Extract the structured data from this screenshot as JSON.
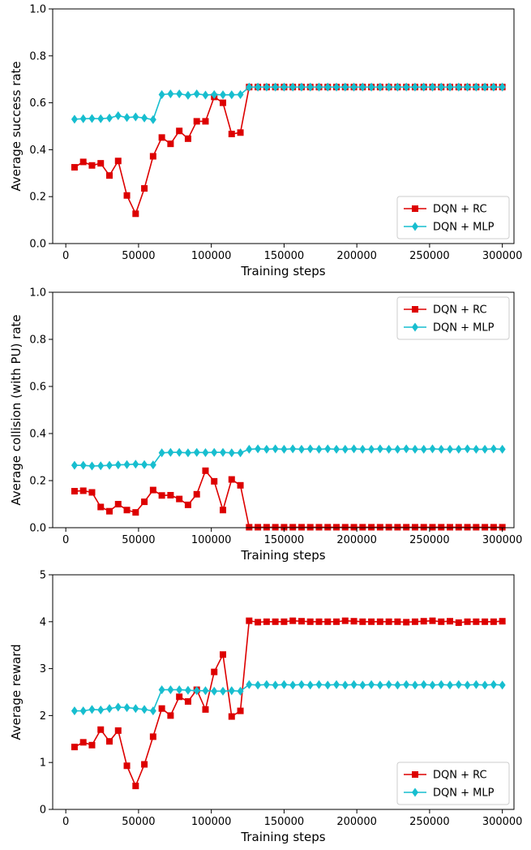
{
  "colors": {
    "rc": "#dd0000",
    "mlp": "#17becf",
    "axis": "#000000"
  },
  "chart_data": [
    {
      "type": "line",
      "xlabel": "Training steps",
      "ylabel": "Average success rate",
      "xlim": [
        -9000,
        308000
      ],
      "ylim": [
        0,
        1.0
      ],
      "xticks": [
        0,
        50000,
        100000,
        150000,
        200000,
        250000,
        300000
      ],
      "xtick_labels": [
        "0",
        "50000",
        "100000",
        "150000",
        "200000",
        "250000",
        "300000"
      ],
      "yticks": [
        0,
        0.2,
        0.4,
        0.6,
        0.8,
        1.0
      ],
      "ytick_labels": [
        "0.0",
        "0.2",
        "0.4",
        "0.6",
        "0.8",
        "1.0"
      ],
      "legend_position": "bottom-right",
      "series": [
        {
          "name": "DQN + RC",
          "marker": "square",
          "color": "#dd0000",
          "values": [
            0.325,
            0.348,
            0.333,
            0.342,
            0.29,
            0.352,
            0.205,
            0.127,
            0.235,
            0.372,
            0.452,
            0.425,
            0.48,
            0.447,
            0.521,
            0.521,
            0.625,
            0.6,
            0.467,
            0.473,
            0.667,
            0.667,
            0.667,
            0.667,
            0.667,
            0.667,
            0.667,
            0.667,
            0.667,
            0.667,
            0.667,
            0.667,
            0.667,
            0.667,
            0.667,
            0.667,
            0.667,
            0.667,
            0.667,
            0.667,
            0.667,
            0.667,
            0.667,
            0.667,
            0.667,
            0.667,
            0.667,
            0.667,
            0.667,
            0.667
          ]
        },
        {
          "name": "DQN + MLP",
          "marker": "diamond",
          "color": "#17becf",
          "values": [
            0.53,
            0.532,
            0.533,
            0.532,
            0.535,
            0.545,
            0.537,
            0.54,
            0.535,
            0.528,
            0.635,
            0.638,
            0.638,
            0.632,
            0.638,
            0.633,
            0.635,
            0.634,
            0.634,
            0.635,
            0.667,
            0.667,
            0.667,
            0.667,
            0.667,
            0.667,
            0.667,
            0.667,
            0.667,
            0.667,
            0.667,
            0.667,
            0.667,
            0.667,
            0.667,
            0.667,
            0.667,
            0.667,
            0.667,
            0.667,
            0.667,
            0.667,
            0.667,
            0.667,
            0.667,
            0.667,
            0.667,
            0.667,
            0.667,
            0.667
          ]
        }
      ]
    },
    {
      "type": "line",
      "xlabel": "Training steps",
      "ylabel": "Average collision (with PU) rate",
      "xlim": [
        -9000,
        308000
      ],
      "ylim": [
        0,
        1.0
      ],
      "xticks": [
        0,
        50000,
        100000,
        150000,
        200000,
        250000,
        300000
      ],
      "xtick_labels": [
        "0",
        "50000",
        "100000",
        "150000",
        "200000",
        "250000",
        "300000"
      ],
      "yticks": [
        0,
        0.2,
        0.4,
        0.6,
        0.8,
        1.0
      ],
      "ytick_labels": [
        "0.0",
        "0.2",
        "0.4",
        "0.6",
        "0.8",
        "1.0"
      ],
      "legend_position": "top-right",
      "series": [
        {
          "name": "DQN + RC",
          "marker": "square",
          "color": "#dd0000",
          "values": [
            0.155,
            0.157,
            0.15,
            0.088,
            0.07,
            0.1,
            0.075,
            0.065,
            0.11,
            0.16,
            0.137,
            0.138,
            0.122,
            0.097,
            0.142,
            0.242,
            0.197,
            0.075,
            0.205,
            0.18,
            0.002,
            0.002,
            0.002,
            0.002,
            0.002,
            0.002,
            0.002,
            0.002,
            0.002,
            0.002,
            0.002,
            0.002,
            0.002,
            0.002,
            0.002,
            0.002,
            0.002,
            0.002,
            0.002,
            0.002,
            0.002,
            0.002,
            0.002,
            0.002,
            0.002,
            0.002,
            0.002,
            0.002,
            0.002,
            0.002
          ]
        },
        {
          "name": "DQN + MLP",
          "marker": "diamond",
          "color": "#17becf",
          "values": [
            0.265,
            0.265,
            0.262,
            0.263,
            0.265,
            0.267,
            0.268,
            0.27,
            0.268,
            0.267,
            0.318,
            0.32,
            0.32,
            0.318,
            0.32,
            0.319,
            0.32,
            0.32,
            0.318,
            0.318,
            0.333,
            0.335,
            0.333,
            0.335,
            0.333,
            0.335,
            0.333,
            0.335,
            0.333,
            0.335,
            0.333,
            0.333,
            0.335,
            0.333,
            0.333,
            0.335,
            0.333,
            0.333,
            0.335,
            0.333,
            0.333,
            0.335,
            0.333,
            0.333,
            0.333,
            0.335,
            0.333,
            0.333,
            0.335,
            0.333
          ]
        }
      ]
    },
    {
      "type": "line",
      "xlabel": "Training steps",
      "ylabel": "Average reward",
      "xlim": [
        -9000,
        308000
      ],
      "ylim": [
        0,
        5
      ],
      "xticks": [
        0,
        50000,
        100000,
        150000,
        200000,
        250000,
        300000
      ],
      "xtick_labels": [
        "0",
        "50000",
        "100000",
        "150000",
        "200000",
        "250000",
        "300000"
      ],
      "yticks": [
        0,
        1,
        2,
        3,
        4,
        5
      ],
      "ytick_labels": [
        "0",
        "1",
        "2",
        "3",
        "4",
        "5"
      ],
      "legend_position": "bottom-right",
      "series": [
        {
          "name": "DQN + RC",
          "marker": "square",
          "color": "#dd0000",
          "values": [
            1.33,
            1.43,
            1.37,
            1.7,
            1.45,
            1.68,
            0.93,
            0.5,
            0.96,
            1.55,
            2.15,
            2.0,
            2.4,
            2.3,
            2.55,
            2.13,
            2.93,
            3.3,
            1.98,
            2.1,
            4.02,
            3.99,
            4.0,
            4.0,
            4.0,
            4.02,
            4.01,
            4.0,
            4.0,
            4.0,
            4.0,
            4.02,
            4.01,
            4.0,
            4.0,
            4.0,
            4.0,
            4.0,
            3.99,
            4.0,
            4.01,
            4.02,
            4.0,
            4.01,
            3.98,
            4.0,
            4.0,
            4.0,
            4.0,
            4.01
          ]
        },
        {
          "name": "DQN + MLP",
          "marker": "diamond",
          "color": "#17becf",
          "values": [
            2.1,
            2.1,
            2.13,
            2.12,
            2.15,
            2.18,
            2.17,
            2.15,
            2.13,
            2.1,
            2.55,
            2.55,
            2.55,
            2.54,
            2.53,
            2.53,
            2.52,
            2.52,
            2.53,
            2.52,
            2.66,
            2.65,
            2.66,
            2.65,
            2.66,
            2.65,
            2.66,
            2.65,
            2.66,
            2.65,
            2.66,
            2.65,
            2.66,
            2.65,
            2.66,
            2.65,
            2.66,
            2.65,
            2.66,
            2.65,
            2.66,
            2.65,
            2.66,
            2.65,
            2.66,
            2.65,
            2.66,
            2.65,
            2.66,
            2.65
          ]
        }
      ]
    }
  ]
}
